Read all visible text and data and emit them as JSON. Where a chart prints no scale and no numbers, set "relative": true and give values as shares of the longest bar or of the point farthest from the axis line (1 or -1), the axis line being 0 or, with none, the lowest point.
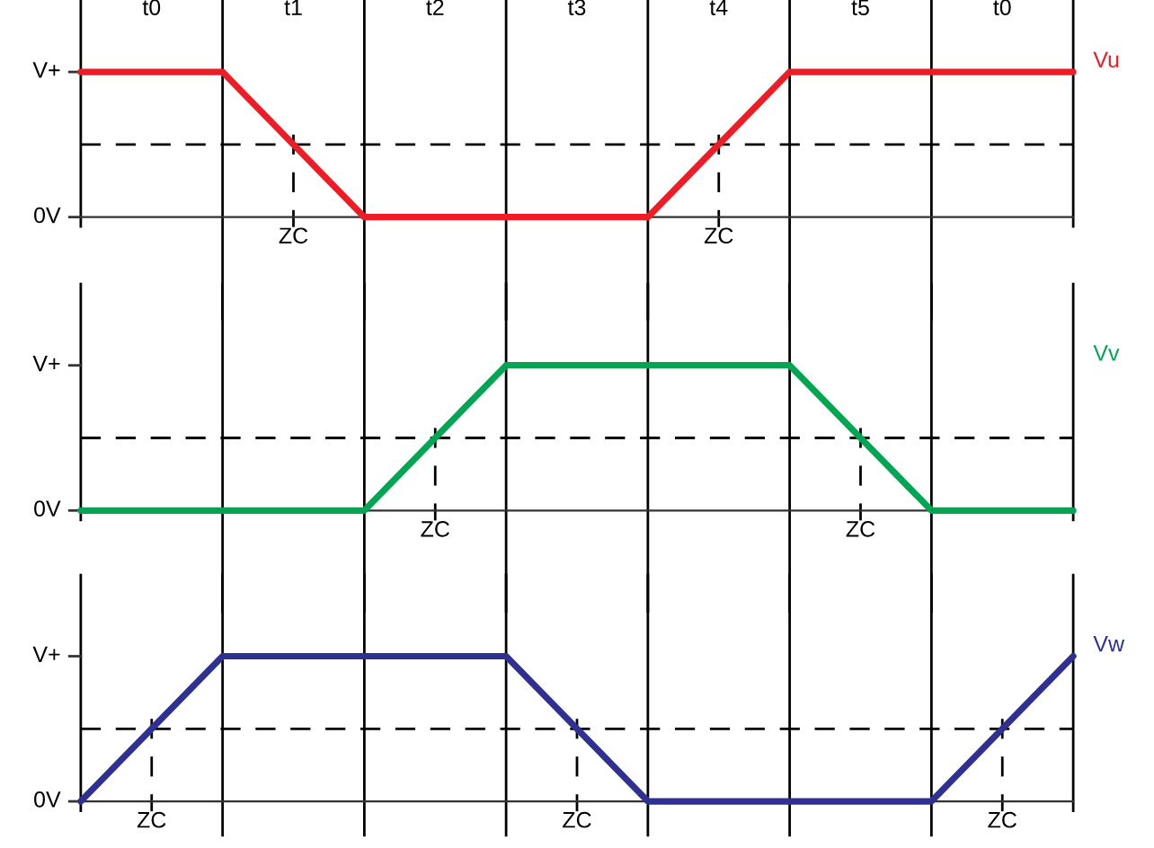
{
  "chart_data": [
    {
      "type": "line",
      "relative": true,
      "categories": [
        null,
        null,
        null,
        null,
        null,
        null,
        null,
        null
      ],
      "grid": "x",
      "marker": "none",
      "line_style": "solid",
      "series": [
        {
          "name": "Vu",
          "color": "#ee1c24",
          "values": [
            1,
            1,
            0,
            0,
            0,
            1,
            1,
            1
          ]
        }
      ],
      "ref_lines": [
        {
          "axis": "y",
          "value": 0.5,
          "line_style": "dashed",
          "color": "#000000"
        }
      ],
      "annotations": [
        "t0",
        "t1",
        "t2",
        "t3",
        "t4",
        "t5",
        "t0",
        "V+",
        "0V",
        "ZC",
        "ZC"
      ]
    },
    {
      "type": "line",
      "relative": true,
      "categories": [
        null,
        null,
        null,
        null,
        null,
        null,
        null,
        null
      ],
      "grid": "x",
      "marker": "none",
      "line_style": "solid",
      "series": [
        {
          "name": "Vv",
          "color": "#00a651",
          "values": [
            0,
            0,
            0,
            1,
            1,
            1,
            0,
            0
          ]
        }
      ],
      "ref_lines": [
        {
          "axis": "y",
          "value": 0.5,
          "line_style": "dashed",
          "color": "#000000"
        }
      ],
      "annotations": [
        "V+",
        "0V",
        "ZC",
        "ZC"
      ]
    },
    {
      "type": "line",
      "relative": true,
      "categories": [
        null,
        null,
        null,
        null,
        null,
        null,
        null,
        null
      ],
      "grid": "x",
      "marker": "none",
      "line_style": "solid",
      "series": [
        {
          "name": "Vw",
          "color": "#2e3192",
          "values": [
            0,
            1,
            1,
            1,
            0,
            0,
            0,
            1
          ]
        }
      ],
      "ref_lines": [
        {
          "axis": "y",
          "value": 0.5,
          "line_style": "dashed",
          "color": "#000000"
        }
      ],
      "annotations": [
        "V+",
        "0V",
        "ZC",
        "ZC",
        "ZC"
      ]
    }
  ]
}
